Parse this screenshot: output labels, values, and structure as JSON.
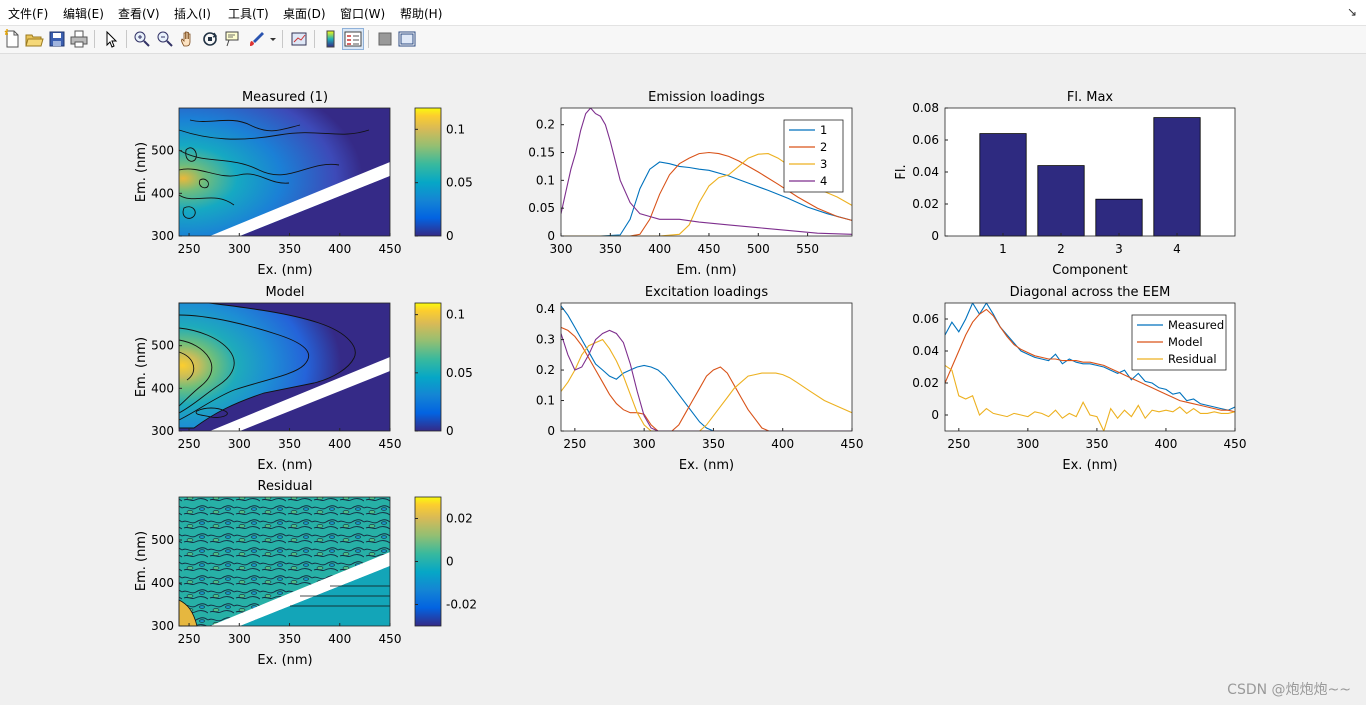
{
  "menubar": {
    "items": [
      "文件(F)",
      "编辑(E)",
      "查看(V)",
      "插入(I)",
      "工具(T)",
      "桌面(D)",
      "窗口(W)",
      "帮助(H)"
    ],
    "corner_glyph": "↘"
  },
  "toolbar": {
    "buttons": [
      {
        "name": "new-figure-icon",
        "label": "New Figure"
      },
      {
        "name": "open-file-icon",
        "label": "Open File"
      },
      {
        "name": "save-icon",
        "label": "Save"
      },
      {
        "name": "print-icon",
        "label": "Print"
      },
      {
        "name": "edit-plot-arrow-icon",
        "label": "Edit Plot"
      },
      {
        "name": "zoom-in-icon",
        "label": "Zoom In"
      },
      {
        "name": "zoom-out-icon",
        "label": "Zoom Out"
      },
      {
        "name": "pan-hand-icon",
        "label": "Pan"
      },
      {
        "name": "rotate-3d-icon",
        "label": "Rotate 3D"
      },
      {
        "name": "data-cursor-icon",
        "label": "Data Cursor"
      },
      {
        "name": "brush-icon",
        "label": "Brush"
      },
      {
        "name": "link-plot-icon",
        "label": "Link Plot"
      },
      {
        "name": "colorbar-icon",
        "label": "Insert Colorbar"
      },
      {
        "name": "legend-icon",
        "label": "Insert Legend"
      },
      {
        "name": "hide-plot-tools-icon",
        "label": "Hide Plot Tools"
      },
      {
        "name": "show-plot-tools-icon",
        "label": "Show Plot Tools"
      }
    ]
  },
  "colors": {
    "c1": "#0072bd",
    "c2": "#d95319",
    "c3": "#edb120",
    "c4": "#7e2f8e",
    "bar": "#2e2a80",
    "parula_low": "#352a87",
    "parula_high": "#f9fb0e"
  },
  "chart_data": [
    {
      "type": "heatmap",
      "title": "Measured (1)",
      "xlabel": "Ex. (nm)",
      "ylabel": "Em. (nm)",
      "xlim": [
        240,
        450
      ],
      "ylim": [
        300,
        600
      ],
      "xticks": [
        250,
        300,
        350,
        400,
        450
      ],
      "yticks": [
        300,
        400,
        500
      ],
      "colorbar": {
        "min": 0,
        "max": 0.12,
        "ticks": [
          0,
          0.05,
          0.1
        ]
      }
    },
    {
      "type": "heatmap",
      "title": "Model",
      "xlabel": "Ex. (nm)",
      "ylabel": "Em. (nm)",
      "xlim": [
        240,
        450
      ],
      "ylim": [
        300,
        600
      ],
      "xticks": [
        250,
        300,
        350,
        400,
        450
      ],
      "yticks": [
        300,
        400,
        500
      ],
      "colorbar": {
        "min": 0,
        "max": 0.11,
        "ticks": [
          0,
          0.05,
          0.1
        ]
      }
    },
    {
      "type": "heatmap",
      "title": "Residual",
      "xlabel": "Ex. (nm)",
      "ylabel": "Em. (nm)",
      "xlim": [
        240,
        450
      ],
      "ylim": [
        300,
        600
      ],
      "xticks": [
        250,
        300,
        350,
        400,
        450
      ],
      "yticks": [
        300,
        400,
        500
      ],
      "colorbar": {
        "min": -0.03,
        "max": 0.03,
        "ticks": [
          -0.02,
          0,
          0.02
        ]
      }
    },
    {
      "type": "line",
      "title": "Emission loadings",
      "xlabel": "Em. (nm)",
      "ylabel": "",
      "xlim": [
        300,
        595
      ],
      "ylim": [
        0,
        0.23
      ],
      "xticks": [
        300,
        350,
        400,
        450,
        500,
        550
      ],
      "yticks": [
        0,
        0.05,
        0.1,
        0.15,
        0.2
      ],
      "legend": "top-right",
      "series": [
        {
          "name": "1",
          "color": "#0072bd",
          "x": [
            300,
            320,
            340,
            360,
            370,
            380,
            390,
            400,
            410,
            420,
            430,
            440,
            450,
            470,
            490,
            510,
            530,
            550,
            570,
            595
          ],
          "y": [
            0,
            0,
            0,
            0.002,
            0.03,
            0.085,
            0.12,
            0.133,
            0.13,
            0.125,
            0.123,
            0.12,
            0.118,
            0.108,
            0.095,
            0.082,
            0.068,
            0.052,
            0.04,
            0.028
          ]
        },
        {
          "name": "2",
          "color": "#d95319",
          "x": [
            300,
            340,
            370,
            380,
            390,
            400,
            410,
            420,
            430,
            440,
            450,
            460,
            470,
            480,
            490,
            500,
            520,
            540,
            560,
            580,
            595
          ],
          "y": [
            0,
            0,
            0,
            0.003,
            0.03,
            0.075,
            0.11,
            0.13,
            0.14,
            0.148,
            0.15,
            0.148,
            0.143,
            0.135,
            0.125,
            0.115,
            0.093,
            0.07,
            0.05,
            0.035,
            0.028
          ]
        },
        {
          "name": "3",
          "color": "#edb120",
          "x": [
            300,
            340,
            400,
            420,
            430,
            440,
            450,
            460,
            470,
            480,
            490,
            500,
            510,
            520,
            530,
            540,
            550,
            560,
            580,
            595
          ],
          "y": [
            0,
            0,
            0,
            0.003,
            0.02,
            0.06,
            0.09,
            0.105,
            0.11,
            0.125,
            0.14,
            0.147,
            0.148,
            0.14,
            0.128,
            0.112,
            0.097,
            0.085,
            0.07,
            0.055
          ]
        },
        {
          "name": "4",
          "color": "#7e2f8e",
          "x": [
            300,
            305,
            310,
            315,
            320,
            325,
            330,
            335,
            340,
            345,
            350,
            360,
            370,
            380,
            390,
            400,
            420,
            440,
            470,
            500,
            530,
            560,
            595
          ],
          "y": [
            0.04,
            0.08,
            0.12,
            0.15,
            0.19,
            0.22,
            0.23,
            0.22,
            0.215,
            0.2,
            0.17,
            0.1,
            0.06,
            0.04,
            0.035,
            0.03,
            0.03,
            0.025,
            0.02,
            0.015,
            0.01,
            0.005,
            0.003
          ]
        }
      ]
    },
    {
      "type": "line",
      "title": "Excitation loadings",
      "xlabel": "Ex. (nm)",
      "ylabel": "",
      "xlim": [
        240,
        450
      ],
      "ylim": [
        0,
        0.42
      ],
      "xticks": [
        250,
        300,
        350,
        400,
        450
      ],
      "yticks": [
        0,
        0.1,
        0.2,
        0.3,
        0.4
      ],
      "series": [
        {
          "name": "1",
          "color": "#0072bd",
          "x": [
            240,
            245,
            250,
            255,
            260,
            265,
            270,
            275,
            280,
            285,
            290,
            295,
            300,
            305,
            310,
            315,
            320,
            325,
            330,
            335,
            340,
            345,
            350,
            355,
            450
          ],
          "y": [
            0.41,
            0.38,
            0.34,
            0.3,
            0.26,
            0.22,
            0.2,
            0.18,
            0.17,
            0.19,
            0.2,
            0.21,
            0.215,
            0.21,
            0.2,
            0.18,
            0.15,
            0.12,
            0.09,
            0.06,
            0.03,
            0.01,
            0,
            0,
            0
          ]
        },
        {
          "name": "2",
          "color": "#d95319",
          "x": [
            240,
            245,
            250,
            255,
            260,
            265,
            270,
            275,
            280,
            285,
            290,
            295,
            300,
            305,
            310,
            315,
            320,
            325,
            330,
            335,
            340,
            345,
            350,
            355,
            360,
            365,
            370,
            375,
            380,
            385,
            390,
            450
          ],
          "y": [
            0.34,
            0.33,
            0.31,
            0.28,
            0.24,
            0.2,
            0.16,
            0.12,
            0.09,
            0.07,
            0.06,
            0.06,
            0.055,
            0.02,
            0,
            0,
            0,
            0.02,
            0.06,
            0.1,
            0.14,
            0.18,
            0.2,
            0.21,
            0.19,
            0.15,
            0.11,
            0.07,
            0.04,
            0.01,
            0,
            0
          ]
        },
        {
          "name": "3",
          "color": "#edb120",
          "x": [
            240,
            245,
            250,
            255,
            260,
            265,
            270,
            275,
            280,
            285,
            290,
            295,
            300,
            305,
            340,
            345,
            350,
            355,
            360,
            365,
            370,
            375,
            380,
            385,
            390,
            395,
            400,
            405,
            410,
            420,
            430,
            440,
            450
          ],
          "y": [
            0.13,
            0.16,
            0.2,
            0.25,
            0.28,
            0.29,
            0.3,
            0.27,
            0.23,
            0.18,
            0.12,
            0.06,
            0.02,
            0,
            0,
            0.02,
            0.05,
            0.08,
            0.11,
            0.14,
            0.16,
            0.18,
            0.185,
            0.19,
            0.19,
            0.19,
            0.185,
            0.175,
            0.16,
            0.13,
            0.1,
            0.08,
            0.06
          ]
        },
        {
          "name": "4",
          "color": "#7e2f8e",
          "x": [
            240,
            245,
            250,
            255,
            260,
            265,
            270,
            275,
            280,
            285,
            290,
            295,
            300,
            305,
            310,
            450
          ],
          "y": [
            0.32,
            0.25,
            0.2,
            0.21,
            0.25,
            0.3,
            0.32,
            0.33,
            0.32,
            0.29,
            0.22,
            0.13,
            0.05,
            0.01,
            0,
            0
          ]
        }
      ]
    },
    {
      "type": "bar",
      "title": "Fl. Max",
      "xlabel": "Component",
      "ylabel": "Fl.",
      "categories": [
        "1",
        "2",
        "3",
        "4"
      ],
      "values": [
        0.064,
        0.044,
        0.023,
        0.074
      ],
      "ylim": [
        0,
        0.08
      ],
      "yticks": [
        0,
        0.02,
        0.04,
        0.06,
        0.08
      ]
    },
    {
      "type": "line",
      "title": "Diagonal across the EEM",
      "xlabel": "Ex. (nm)",
      "ylabel": "",
      "xlim": [
        240,
        450
      ],
      "ylim": [
        -0.01,
        0.07
      ],
      "xticks": [
        250,
        300,
        350,
        400,
        450
      ],
      "yticks": [
        0,
        0.02,
        0.04,
        0.06
      ],
      "legend": "top-right",
      "series": [
        {
          "name": "Measured",
          "color": "#0072bd",
          "x": [
            240,
            245,
            250,
            255,
            260,
            265,
            270,
            275,
            280,
            285,
            290,
            295,
            300,
            305,
            310,
            315,
            320,
            325,
            330,
            335,
            340,
            345,
            350,
            355,
            360,
            365,
            370,
            375,
            380,
            385,
            390,
            395,
            400,
            405,
            410,
            415,
            420,
            425,
            430,
            435,
            440,
            445,
            450
          ],
          "y": [
            0.05,
            0.058,
            0.052,
            0.06,
            0.07,
            0.063,
            0.07,
            0.063,
            0.055,
            0.05,
            0.045,
            0.04,
            0.038,
            0.036,
            0.035,
            0.034,
            0.038,
            0.032,
            0.035,
            0.033,
            0.032,
            0.032,
            0.031,
            0.03,
            0.028,
            0.026,
            0.028,
            0.022,
            0.026,
            0.021,
            0.02,
            0.017,
            0.016,
            0.013,
            0.014,
            0.009,
            0.01,
            0.007,
            0.006,
            0.005,
            0.004,
            0.003,
            0.005
          ]
        },
        {
          "name": "Model",
          "color": "#d95319",
          "x": [
            240,
            245,
            250,
            255,
            260,
            265,
            270,
            275,
            280,
            285,
            290,
            295,
            300,
            305,
            310,
            315,
            320,
            325,
            330,
            335,
            340,
            345,
            350,
            355,
            360,
            365,
            370,
            375,
            380,
            385,
            390,
            395,
            400,
            405,
            410,
            415,
            420,
            425,
            430,
            435,
            440,
            445,
            450
          ],
          "y": [
            0.02,
            0.03,
            0.04,
            0.05,
            0.058,
            0.063,
            0.066,
            0.062,
            0.055,
            0.049,
            0.044,
            0.041,
            0.039,
            0.037,
            0.036,
            0.035,
            0.035,
            0.034,
            0.034,
            0.034,
            0.033,
            0.033,
            0.032,
            0.031,
            0.029,
            0.027,
            0.025,
            0.023,
            0.021,
            0.019,
            0.017,
            0.015,
            0.013,
            0.011,
            0.009,
            0.008,
            0.007,
            0.006,
            0.005,
            0.004,
            0.003,
            0.003,
            0.002
          ]
        },
        {
          "name": "Residual",
          "color": "#edb120",
          "x": [
            240,
            245,
            250,
            255,
            260,
            265,
            270,
            275,
            280,
            285,
            290,
            295,
            300,
            305,
            310,
            315,
            320,
            325,
            330,
            335,
            340,
            345,
            350,
            355,
            360,
            365,
            370,
            375,
            380,
            385,
            390,
            395,
            400,
            405,
            410,
            415,
            420,
            425,
            430,
            435,
            440,
            445,
            450
          ],
          "y": [
            0.031,
            0.028,
            0.012,
            0.01,
            0.012,
            0,
            0.004,
            0.001,
            0,
            -0.001,
            0.001,
            0,
            -0.001,
            0.002,
            0.001,
            -0.001,
            0.003,
            -0.002,
            0.001,
            -0.001,
            0.008,
            0,
            -0.001,
            -0.01,
            0.004,
            -0.002,
            0.003,
            -0.001,
            0.006,
            -0.002,
            0.003,
            0.002,
            0.003,
            0.002,
            0.005,
            0.001,
            0.004,
            0.001,
            0.001,
            0.002,
            0.001,
            0.001,
            0.002
          ]
        }
      ]
    }
  ],
  "watermark": "CSDN @炮炮炮~~"
}
